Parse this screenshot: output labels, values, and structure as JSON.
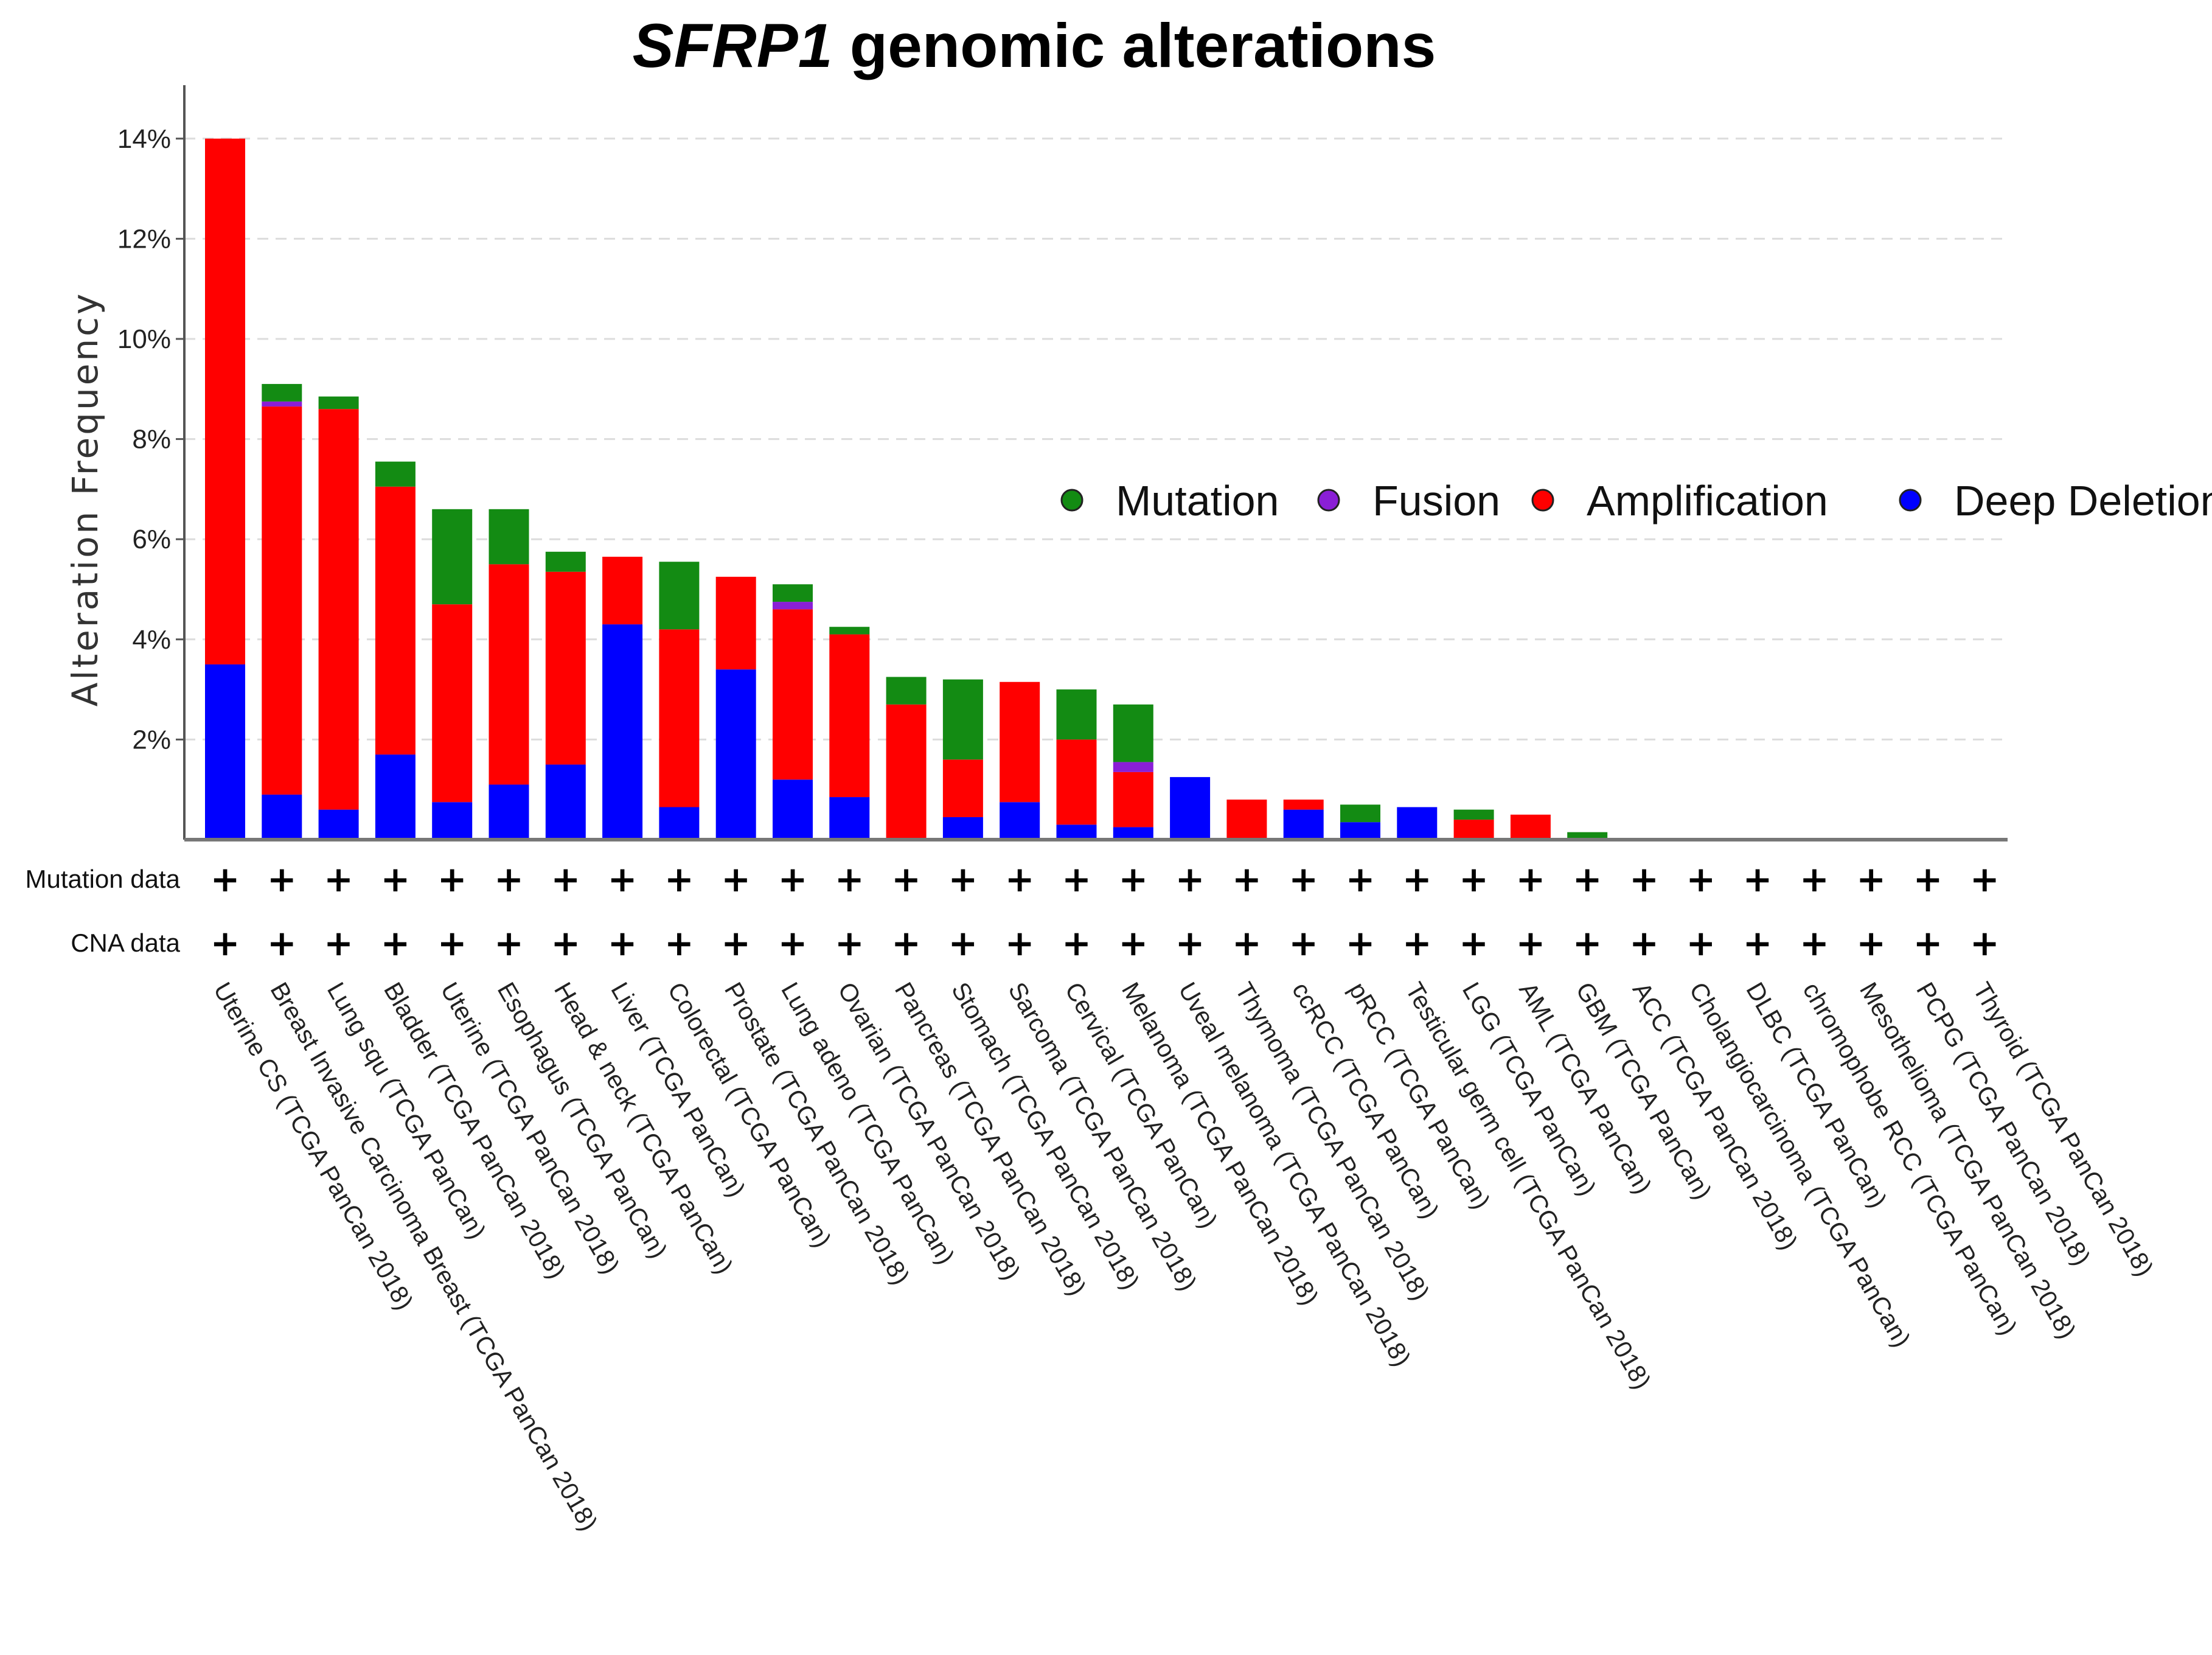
{
  "chart_data": {
    "type": "bar",
    "stacked": true,
    "title_italic": "SFRP1",
    "title_rest": " genomic alterations",
    "ylabel": "Alteration Frequency",
    "ylim": [
      0,
      15
    ],
    "yticks": [
      2,
      4,
      6,
      8,
      10,
      12,
      14
    ],
    "ytick_labels": [
      "2%",
      "4%",
      "6%",
      "8%",
      "10%",
      "12%",
      "14%"
    ],
    "grid": true,
    "legend_position": "right",
    "legend": [
      {
        "key": "mutation",
        "label": "Mutation",
        "color": "#138b13"
      },
      {
        "key": "fusion",
        "label": "Fusion",
        "color": "#8a1fd6"
      },
      {
        "key": "amplification",
        "label": "Amplification",
        "color": "#ff0000"
      },
      {
        "key": "deep_deletion",
        "label": "Deep Deletion",
        "color": "#0000ff"
      }
    ],
    "series_order": [
      "deep_deletion",
      "amplification",
      "fusion",
      "mutation"
    ],
    "categories": [
      "Uterine CS (TCGA PanCan 2018)",
      "Breast Invasive Carcinoma Breast (TCGA PanCan 2018)",
      "Lung squ (TCGA PanCan)",
      "Bladder (TCGA PanCan 2018)",
      "Uterine (TCGA PanCan 2018)",
      "Esophagus (TCGA PanCan)",
      "Head & neck (TCGA PanCan)",
      "Liver (TCGA PanCan)",
      "Colorectal (TCGA PanCan)",
      "Prostate (TCGA PanCan 2018)",
      "Lung adeno (TCGA PanCan)",
      "Ovarian (TCGA PanCan 2018)",
      "Pancreas (TCGA PanCan 2018)",
      "Stomach (TCGA PanCan 2018)",
      "Sarcoma (TCGA PanCan 2018)",
      "Cervical (TCGA PanCan)",
      "Melanoma (TCGA PanCan 2018)",
      "Uveal melanoma (TCGA PanCan 2018)",
      "Thymoma (TCGA PanCan 2018)",
      "ccRCC (TCGA PanCan)",
      "pRCC (TCGA PanCan)",
      "Testicular germ cell (TCGA PanCan 2018)",
      "LGG (TCGA PanCan)",
      "AML (TCGA PanCan)",
      "GBM (TCGA PanCan)",
      "ACC (TCGA PanCan 2018)",
      "Cholangiocarcinoma (TCGA PanCan)",
      "DLBC (TCGA PanCan)",
      "chromophobe RCC (TCGA PanCan)",
      "Mesothelioma (TCGA PanCan 2018)",
      "PCPG (TCGA PanCan 2018)",
      "Thyroid (TCGA PanCan 2018)"
    ],
    "series": [
      {
        "key": "deep_deletion",
        "name": "Deep Deletion",
        "values": [
          3.5,
          0.9,
          0.6,
          1.7,
          0.75,
          1.1,
          1.5,
          4.3,
          0.65,
          3.4,
          1.2,
          0.85,
          0,
          0.45,
          0.75,
          0.3,
          0.25,
          1.25,
          0,
          0.6,
          0.35,
          0.65,
          0,
          0,
          0,
          0,
          0,
          0,
          0,
          0,
          0,
          0
        ]
      },
      {
        "key": "amplification",
        "name": "Amplification",
        "values": [
          10.5,
          7.75,
          8.0,
          5.35,
          3.95,
          4.4,
          3.85,
          1.35,
          3.55,
          1.85,
          3.4,
          3.25,
          2.7,
          1.15,
          2.4,
          1.7,
          1.1,
          0,
          0.8,
          0.2,
          0,
          0,
          0.4,
          0.5,
          0,
          0,
          0,
          0,
          0,
          0,
          0,
          0
        ]
      },
      {
        "key": "fusion",
        "name": "Fusion",
        "values": [
          0,
          0.1,
          0,
          0,
          0,
          0,
          0,
          0,
          0,
          0,
          0.15,
          0,
          0,
          0,
          0,
          0,
          0.2,
          0,
          0,
          0,
          0,
          0,
          0,
          0,
          0,
          0,
          0,
          0,
          0,
          0,
          0,
          0
        ]
      },
      {
        "key": "mutation",
        "name": "Mutation",
        "values": [
          0,
          0.35,
          0.25,
          0.5,
          1.9,
          1.1,
          0.4,
          0,
          1.35,
          0,
          0.35,
          0.15,
          0.55,
          1.6,
          0,
          1.0,
          1.15,
          0,
          0,
          0,
          0.35,
          0,
          0.2,
          0,
          0.15,
          0,
          0,
          0,
          0,
          0,
          0,
          0
        ]
      }
    ],
    "data_rows": [
      {
        "label": "Mutation data",
        "marks": [
          "+",
          "+",
          "+",
          "+",
          "+",
          "+",
          "+",
          "+",
          "+",
          "+",
          "+",
          "+",
          "+",
          "+",
          "+",
          "+",
          "+",
          "+",
          "+",
          "+",
          "+",
          "+",
          "+",
          "+",
          "+",
          "+",
          "+",
          "+",
          "+",
          "+",
          "+",
          "+"
        ]
      },
      {
        "label": "CNA data",
        "marks": [
          "+",
          "+",
          "+",
          "+",
          "+",
          "+",
          "+",
          "+",
          "+",
          "+",
          "+",
          "+",
          "+",
          "+",
          "+",
          "+",
          "+",
          "+",
          "+",
          "+",
          "+",
          "+",
          "+",
          "+",
          "+",
          "+",
          "+",
          "+",
          "+",
          "+",
          "+",
          "+"
        ]
      }
    ]
  }
}
